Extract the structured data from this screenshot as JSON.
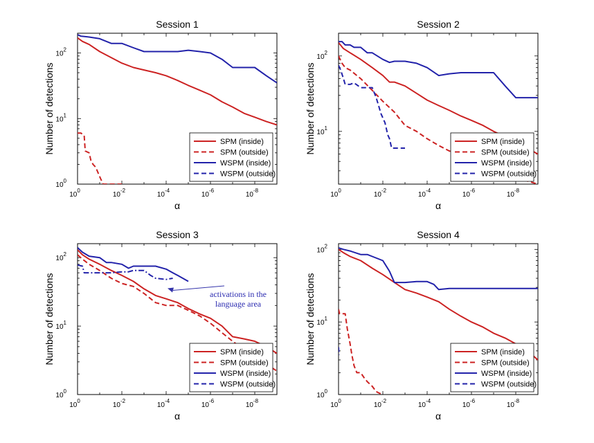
{
  "chart_data": [
    {
      "type": "line",
      "title": "Session 1",
      "xlabel": "α",
      "ylabel": "Number of detections",
      "xscale": "log-reversed",
      "yscale": "log",
      "xlim": [
        1,
        1e-09
      ],
      "ylim": [
        1,
        200
      ],
      "xticks": [
        {
          "v": 1,
          "b": "10",
          "e": "0"
        },
        {
          "v": 0.01,
          "b": "10",
          "e": "-2"
        },
        {
          "v": 0.0001,
          "b": "10",
          "e": "-4"
        },
        {
          "v": 1e-06,
          "b": "10",
          "e": "-6"
        },
        {
          "v": 1e-08,
          "b": "10",
          "e": "-8"
        }
      ],
      "yticks": [
        {
          "v": 1,
          "b": "10",
          "e": "0"
        },
        {
          "v": 10,
          "b": "10",
          "e": "1"
        },
        {
          "v": 100,
          "b": "10",
          "e": "2"
        }
      ],
      "legend_position": "bottom-right",
      "series": [
        {
          "name": "SPM (inside)",
          "color": "#cc2222",
          "dash": "solid",
          "x": [
            1,
            0.6,
            0.3,
            0.1,
            0.03,
            0.01,
            0.003,
            0.001,
            0.0003,
            0.0001,
            3e-05,
            1e-05,
            3e-06,
            1e-06,
            3e-07,
            1e-07,
            3e-08,
            1e-08,
            3e-09,
            1e-09
          ],
          "y": [
            170,
            150,
            135,
            105,
            85,
            70,
            60,
            55,
            50,
            45,
            38,
            32,
            27,
            23,
            18,
            15,
            12,
            10.5,
            9,
            8
          ]
        },
        {
          "name": "SPM (outside)",
          "color": "#cc2222",
          "dash": "dashed",
          "x": [
            1,
            0.7,
            0.5,
            0.45,
            0.3,
            0.25,
            0.2,
            0.15,
            0.12,
            0.09,
            0.07,
            0.05,
            0.01
          ],
          "y": [
            6,
            6,
            5.5,
            3.2,
            3,
            2.3,
            2,
            1.8,
            1.5,
            1.2,
            1,
            1,
            1
          ]
        },
        {
          "name": "WSPM (inside)",
          "color": "#2222aa",
          "dash": "solid",
          "x": [
            1,
            0.7,
            0.3,
            0.1,
            0.05,
            0.03,
            0.01,
            0.003,
            0.001,
            0.0003,
            0.0001,
            3e-05,
            1e-05,
            3e-06,
            1e-06,
            3e-07,
            1e-07,
            3e-08,
            1e-08,
            3e-09,
            1e-09
          ],
          "y": [
            190,
            180,
            175,
            165,
            150,
            140,
            140,
            120,
            105,
            105,
            105,
            105,
            110,
            105,
            100,
            80,
            60,
            60,
            60,
            45,
            35
          ]
        },
        {
          "name": "WSPM (outside)",
          "color": "#2222aa",
          "dash": "dashed",
          "x": [],
          "y": []
        }
      ]
    },
    {
      "type": "line",
      "title": "Session 2",
      "xlabel": "α",
      "ylabel": "Number of detections",
      "xscale": "log-reversed",
      "yscale": "log",
      "xlim": [
        1,
        1e-09
      ],
      "ylim": [
        2,
        200
      ],
      "xticks": [
        {
          "v": 1,
          "b": "10",
          "e": "0"
        },
        {
          "v": 0.01,
          "b": "10",
          "e": "-2"
        },
        {
          "v": 0.0001,
          "b": "10",
          "e": "-4"
        },
        {
          "v": 1e-06,
          "b": "10",
          "e": "-6"
        },
        {
          "v": 1e-08,
          "b": "10",
          "e": "-8"
        }
      ],
      "yticks": [
        {
          "v": 10,
          "b": "10",
          "e": "1"
        },
        {
          "v": 100,
          "b": "10",
          "e": "2"
        }
      ],
      "legend_position": "bottom-right",
      "series": [
        {
          "name": "SPM (inside)",
          "color": "#cc2222",
          "dash": "solid",
          "x": [
            1,
            0.6,
            0.3,
            0.1,
            0.03,
            0.01,
            0.005,
            0.003,
            0.001,
            0.0003,
            0.0001,
            3e-05,
            1e-05,
            3e-06,
            1e-06,
            3e-07,
            1e-07,
            3e-08,
            1e-08,
            3e-09,
            1e-09
          ],
          "y": [
            150,
            125,
            110,
            90,
            70,
            55,
            45,
            45,
            40,
            32,
            26,
            22,
            19,
            16,
            14,
            12,
            10,
            8.5,
            7.5,
            6,
            5
          ]
        },
        {
          "name": "SPM (outside)",
          "color": "#cc2222",
          "dash": "dashed",
          "x": [
            1,
            0.7,
            0.5,
            0.3,
            0.1,
            0.03,
            0.01,
            0.003,
            0.001,
            0.0003,
            0.0001,
            3e-05,
            1e-05,
            3e-06,
            1e-06,
            3e-07,
            1e-07,
            3e-08,
            1e-08,
            3e-09,
            1e-09
          ],
          "y": [
            100,
            80,
            70,
            65,
            50,
            35,
            25,
            18,
            12,
            10,
            8,
            6.5,
            5.5,
            5,
            4.5,
            4,
            3.5,
            3,
            2.5,
            2.2,
            2
          ]
        },
        {
          "name": "WSPM (inside)",
          "color": "#2222aa",
          "dash": "solid",
          "x": [
            1,
            0.7,
            0.5,
            0.3,
            0.2,
            0.1,
            0.05,
            0.03,
            0.01,
            0.005,
            0.003,
            0.001,
            0.0003,
            0.0001,
            3e-05,
            1e-05,
            3e-06,
            1e-06,
            3e-07,
            1e-07,
            3e-08,
            1e-08,
            3e-09,
            1e-09
          ],
          "y": [
            155,
            155,
            140,
            140,
            130,
            130,
            110,
            110,
            90,
            82,
            85,
            85,
            80,
            70,
            55,
            58,
            60,
            60,
            60,
            60,
            40,
            28,
            28,
            28
          ]
        },
        {
          "name": "WSPM (outside)",
          "color": "#2222aa",
          "dash": "dashed",
          "x": [
            1,
            0.8,
            0.6,
            0.5,
            0.3,
            0.2,
            0.1,
            0.06,
            0.03,
            0.02,
            0.012,
            0.008,
            0.006,
            0.005,
            0.004,
            0.003,
            0.001
          ],
          "y": [
            75,
            65,
            50,
            42,
            42,
            44,
            38,
            38,
            38,
            28,
            17,
            13,
            9,
            8,
            6,
            6,
            6
          ]
        }
      ]
    },
    {
      "type": "line",
      "title": "Session 3",
      "xlabel": "α",
      "ylabel": "Number of detections",
      "xscale": "log-reversed",
      "yscale": "log",
      "xlim": [
        1,
        1e-09
      ],
      "ylim": [
        1,
        160
      ],
      "xticks": [
        {
          "v": 1,
          "b": "10",
          "e": "0"
        },
        {
          "v": 0.01,
          "b": "10",
          "e": "-2"
        },
        {
          "v": 0.0001,
          "b": "10",
          "e": "-4"
        },
        {
          "v": 1e-06,
          "b": "10",
          "e": "-6"
        },
        {
          "v": 1e-08,
          "b": "10",
          "e": "-8"
        }
      ],
      "yticks": [
        {
          "v": 1,
          "b": "10",
          "e": "0"
        },
        {
          "v": 10,
          "b": "10",
          "e": "1"
        },
        {
          "v": 100,
          "b": "10",
          "e": "2"
        }
      ],
      "legend_position": "bottom-right",
      "annotation": {
        "text_lines": [
          "activations in the",
          "language area"
        ],
        "points_to": {
          "x": 0.0001,
          "y": 45
        }
      },
      "series": [
        {
          "name": "SPM (inside)",
          "color": "#cc2222",
          "dash": "solid",
          "x": [
            1,
            0.6,
            0.3,
            0.1,
            0.03,
            0.01,
            0.003,
            0.001,
            0.0003,
            0.0001,
            3e-05,
            1e-05,
            3e-06,
            1e-06,
            3e-07,
            1e-07,
            3e-08,
            1e-08,
            3e-09,
            1e-09
          ],
          "y": [
            130,
            110,
            95,
            80,
            65,
            55,
            45,
            35,
            28,
            25,
            22,
            18,
            15,
            13,
            10,
            7,
            6.5,
            6,
            5,
            4
          ]
        },
        {
          "name": "SPM (outside)",
          "color": "#cc2222",
          "dash": "dashed",
          "x": [
            1,
            0.6,
            0.3,
            0.1,
            0.03,
            0.01,
            0.003,
            0.001,
            0.0003,
            0.0001,
            3e-05,
            1e-05,
            3e-06,
            1e-06,
            3e-07,
            1e-07,
            3e-08,
            1e-08,
            3e-09,
            1e-09
          ],
          "y": [
            110,
            95,
            80,
            65,
            50,
            42,
            38,
            30,
            22,
            20,
            20,
            17,
            14,
            11,
            8,
            6,
            4.5,
            3.5,
            2.8,
            2.2
          ]
        },
        {
          "name": "WSPM (inside)",
          "color": "#2222aa",
          "dash": "solid",
          "x": [
            1,
            0.6,
            0.3,
            0.1,
            0.05,
            0.03,
            0.01,
            0.005,
            0.003,
            0.001,
            0.0003,
            0.0001,
            5e-05,
            3e-05,
            1e-05
          ],
          "y": [
            140,
            120,
            105,
            100,
            85,
            85,
            80,
            70,
            75,
            75,
            75,
            68,
            60,
            55,
            45
          ]
        },
        {
          "name": "WSPM (outside)",
          "color": "#2222aa",
          "dash": "dashdot",
          "x": [
            1,
            0.6,
            0.5,
            0.3,
            0.1,
            0.03,
            0.01,
            0.005,
            0.003,
            0.001,
            0.0005,
            0.0003,
            0.0001,
            5e-05
          ],
          "y": [
            78,
            75,
            60,
            60,
            60,
            60,
            62,
            62,
            65,
            65,
            55,
            50,
            48,
            50
          ]
        }
      ]
    },
    {
      "type": "line",
      "title": "Session 4",
      "xlabel": "α",
      "ylabel": "Number of detections",
      "xscale": "log-reversed",
      "yscale": "log",
      "xlim": [
        1,
        1e-09
      ],
      "ylim": [
        1,
        120
      ],
      "xticks": [
        {
          "v": 1,
          "b": "10",
          "e": "0"
        },
        {
          "v": 0.01,
          "b": "10",
          "e": "-2"
        },
        {
          "v": 0.0001,
          "b": "10",
          "e": "-4"
        },
        {
          "v": 1e-06,
          "b": "10",
          "e": "-6"
        },
        {
          "v": 1e-08,
          "b": "10",
          "e": "-8"
        }
      ],
      "yticks": [
        {
          "v": 1,
          "b": "10",
          "e": "0"
        },
        {
          "v": 10,
          "b": "10",
          "e": "1"
        },
        {
          "v": 100,
          "b": "10",
          "e": "2"
        }
      ],
      "legend_position": "bottom-right",
      "series": [
        {
          "name": "SPM (inside)",
          "color": "#cc2222",
          "dash": "solid",
          "x": [
            1,
            0.6,
            0.3,
            0.1,
            0.03,
            0.01,
            0.003,
            0.001,
            0.0003,
            0.0001,
            3e-05,
            1e-05,
            3e-06,
            1e-06,
            3e-07,
            1e-07,
            3e-08,
            1e-08,
            3e-09,
            1e-09
          ],
          "y": [
            100,
            90,
            80,
            70,
            55,
            45,
            35,
            28,
            25,
            22,
            19,
            15,
            12,
            10,
            8.5,
            7,
            6,
            5,
            4,
            3
          ]
        },
        {
          "name": "SPM (outside)",
          "color": "#cc2222",
          "dash": "dashed",
          "x": [
            1,
            0.9,
            0.7,
            0.5,
            0.4,
            0.3,
            0.25,
            0.2,
            0.15,
            0.1,
            0.07,
            0.05,
            0.03,
            0.02,
            0.015,
            0.01
          ],
          "y": [
            15,
            13,
            13,
            13,
            8,
            5,
            3.5,
            2.5,
            2,
            2,
            1.7,
            1.5,
            1.3,
            1.1,
            1.05,
            1
          ]
        },
        {
          "name": "WSPM (inside)",
          "color": "#2222aa",
          "dash": "solid",
          "x": [
            1,
            0.6,
            0.3,
            0.1,
            0.05,
            0.03,
            0.01,
            0.005,
            0.003,
            0.001,
            0.0003,
            0.0001,
            5e-05,
            3e-05,
            1e-05,
            3e-06,
            1e-06,
            3e-07,
            1e-07,
            3e-08,
            1e-08,
            3e-09,
            1e-09
          ],
          "y": [
            105,
            100,
            95,
            85,
            85,
            80,
            70,
            50,
            35,
            35,
            36,
            36,
            33,
            28,
            29,
            29,
            29,
            29,
            29,
            29,
            29,
            29,
            29
          ]
        },
        {
          "name": "WSPM (outside)",
          "color": "#2222aa",
          "dash": "dashed",
          "x": [
            1,
            0.95
          ],
          "y": [
            4.5,
            3.5
          ]
        }
      ]
    }
  ]
}
